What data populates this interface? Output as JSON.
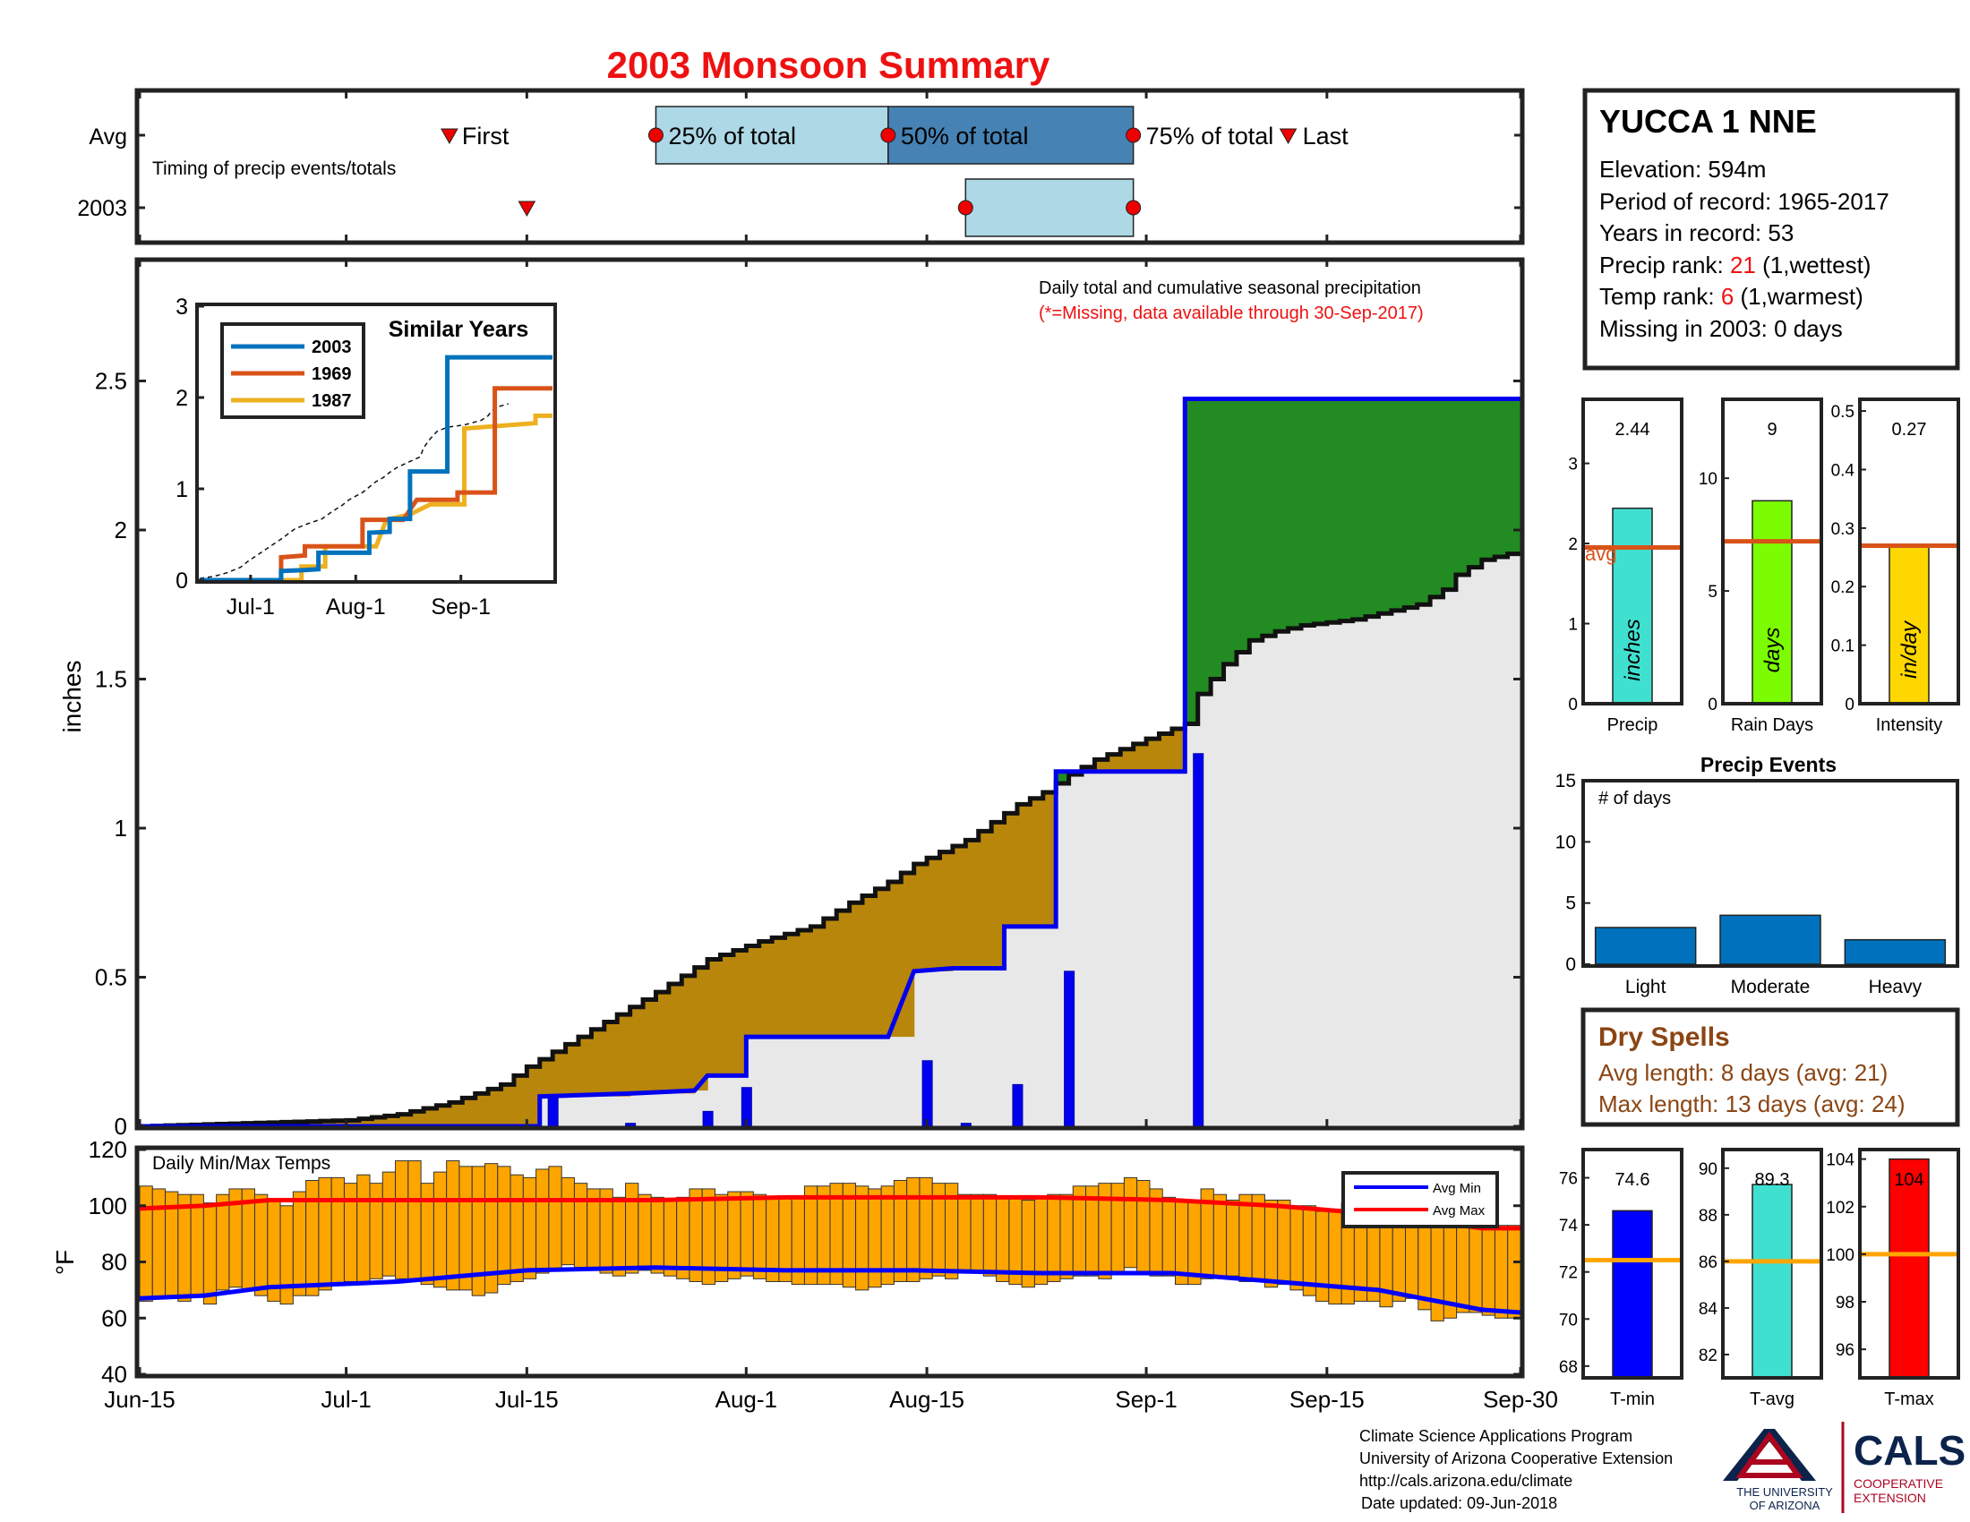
{
  "page": {
    "title": "2003 Monsoon Summary",
    "title_color": "#ee1111"
  },
  "timing": {
    "rows": [
      "Avg",
      "2003"
    ],
    "subtitle": "Timing of precip events/totals",
    "avg_labels": {
      "first": "First",
      "p25": "25% of total",
      "p50": "50% of total",
      "p75": "75% of total",
      "last": "Last"
    },
    "avg_days": {
      "first": 24,
      "p25": 40,
      "p50": 58,
      "p75": 77,
      "last": 89
    },
    "year_days": {
      "first": 30,
      "p50": 64,
      "p75": 77
    },
    "colors": {
      "light": "#add8e6",
      "dark": "#4682b4",
      "marker": "#ee0000"
    }
  },
  "station": {
    "name": "YUCCA 1 NNE",
    "elevation": "Elevation: 594m",
    "period": "Period of record: 1965-2017",
    "years": "Years in record: 53",
    "precip_rank_prefix": "Precip rank: ",
    "precip_rank": "21",
    "precip_rank_suffix": " (1,wettest)",
    "temp_rank_prefix": "Temp rank: ",
    "temp_rank": "6",
    "temp_rank_suffix": " (1,warmest)",
    "missing": "Missing in 2003: 0 days"
  },
  "precip_chart": {
    "note": "Daily total and cumulative seasonal precipitation",
    "missing_note": "(*=Missing, data available through 30-Sep-2017)",
    "ylabel": "inches",
    "yticks": [
      "0",
      "0.5",
      "1",
      "1.5",
      "2",
      "2.5"
    ]
  },
  "inset": {
    "title": "Similar Years",
    "xticks": [
      "Jul-1",
      "Aug-1",
      "Sep-1"
    ],
    "yticks": [
      "0",
      "1",
      "2",
      "3"
    ]
  },
  "temp_chart": {
    "label": "Daily Min/Max Temps",
    "ylabel": "°F",
    "yticks": [
      "40",
      "60",
      "80",
      "100",
      "120"
    ],
    "legend_min": "Avg Min",
    "legend_max": "Avg Max"
  },
  "xaxis": {
    "ticks": [
      "Jun-15",
      "Jul-1",
      "Jul-15",
      "Aug-1",
      "Aug-15",
      "Sep-1",
      "Sep-15",
      "Sep-30"
    ]
  },
  "stats": {
    "precip": {
      "label": "Precip",
      "value_text": "2.44",
      "unit": "inches",
      "value": 2.44,
      "avg": 1.95,
      "avg_label": "avg",
      "ylim": [
        0,
        3.8
      ],
      "yticks": [
        "0",
        "1",
        "2",
        "3"
      ],
      "color": "#40e0d0"
    },
    "raindays": {
      "label": "Rain Days",
      "value_text": "9",
      "unit": "days",
      "value": 9,
      "avg": 7.2,
      "ylim": [
        0,
        13.5
      ],
      "yticks": [
        "0",
        "5",
        "10"
      ],
      "color": "#7cfc00"
    },
    "intensity": {
      "label": "Intensity",
      "value_text": "0.27",
      "unit": "in/day",
      "value": 0.27,
      "avg": 0.27,
      "ylim": [
        0,
        0.52
      ],
      "yticks": [
        "0",
        "0.1",
        "0.2",
        "0.3",
        "0.4",
        "0.5"
      ],
      "color": "#ffd700"
    }
  },
  "events": {
    "title": "Precip Events",
    "subtitle": "# of days",
    "categories": [
      "Light",
      "Moderate",
      "Heavy"
    ],
    "values": [
      3,
      4,
      2
    ],
    "yticks": [
      "0",
      "5",
      "10",
      "15"
    ],
    "color": "#0072bd"
  },
  "dry_spells": {
    "title": "Dry Spells",
    "avg_length": "Avg length: 8 days (avg: 21)",
    "max_length": "Max length: 13 days (avg: 24)",
    "color": "#8b4513"
  },
  "temps_stats": {
    "tmin": {
      "label": "T-min",
      "value_text": "74.6",
      "value": 74.6,
      "avg": 72.5,
      "ylim": [
        67.5,
        77.2
      ],
      "yticks": [
        "68",
        "70",
        "72",
        "74",
        "76"
      ],
      "color": "#0000ff"
    },
    "tavg": {
      "label": "T-avg",
      "value_text": "89.3",
      "value": 89.3,
      "avg": 86.0,
      "ylim": [
        81,
        90.8
      ],
      "yticks": [
        "82",
        "84",
        "86",
        "88",
        "90"
      ],
      "color": "#40e0d0"
    },
    "tmax": {
      "label": "T-max",
      "value_text": "104",
      "value": 104,
      "avg": 100,
      "ylim": [
        94.8,
        104.4
      ],
      "yticks": [
        "96",
        "98",
        "100",
        "102",
        "104"
      ],
      "color": "#ff0000"
    },
    "avg_line_color": "#ffa500"
  },
  "footer": {
    "line1": "Climate Science Applications Program",
    "line2": "University of Arizona Cooperative Extension",
    "line3": "http://cals.arizona.edu/climate",
    "line4": "Date updated: 09-Jun-2018",
    "ua_line1": "THE UNIVERSITY",
    "ua_line2": "OF ARIZONA",
    "cals": "CALS",
    "coop1": "COOPERATIVE",
    "coop2": "EXTENSION"
  },
  "chart_data": [
    {
      "type": "area",
      "title": "Daily total and cumulative seasonal precipitation",
      "ylabel": "inches",
      "ylim": [
        0,
        2.9
      ],
      "xlim_days": [
        0,
        107
      ],
      "x_ticks": [
        "Jun-15",
        "Jul-1",
        "Jul-15",
        "Aug-1",
        "Aug-15",
        "Sep-1",
        "Sep-15",
        "Sep-30"
      ],
      "avg_cumulative": [
        [
          0,
          0
        ],
        [
          8,
          0.01
        ],
        [
          16,
          0.02
        ],
        [
          20,
          0.04
        ],
        [
          24,
          0.08
        ],
        [
          28,
          0.14
        ],
        [
          30,
          0.2
        ],
        [
          34,
          0.3
        ],
        [
          36,
          0.35
        ],
        [
          40,
          0.45
        ],
        [
          44,
          0.56
        ],
        [
          48,
          0.62
        ],
        [
          52,
          0.67
        ],
        [
          55,
          0.75
        ],
        [
          58,
          0.82
        ],
        [
          60,
          0.88
        ],
        [
          64,
          0.96
        ],
        [
          68,
          1.08
        ],
        [
          70,
          1.12
        ],
        [
          72,
          1.18
        ],
        [
          74,
          1.23
        ],
        [
          78,
          1.3
        ],
        [
          81,
          1.35
        ],
        [
          82,
          1.45
        ],
        [
          84,
          1.55
        ],
        [
          86,
          1.63
        ],
        [
          88,
          1.66
        ],
        [
          90,
          1.68
        ],
        [
          92,
          1.69
        ],
        [
          94,
          1.7
        ],
        [
          96,
          1.72
        ],
        [
          99,
          1.75
        ],
        [
          101,
          1.8
        ],
        [
          102,
          1.85
        ],
        [
          104,
          1.9
        ],
        [
          107,
          1.93
        ]
      ],
      "series": [
        {
          "name": "2003",
          "cumulative": [
            [
              0,
              0
            ],
            [
              31,
              0
            ],
            [
              31,
              0.1
            ],
            [
              38,
              0.11
            ],
            [
              43,
              0.12
            ],
            [
              44,
              0.17
            ],
            [
              47,
              0.17
            ],
            [
              47,
              0.3
            ],
            [
              58,
              0.3
            ],
            [
              60,
              0.52
            ],
            [
              63,
              0.53
            ],
            [
              67,
              0.53
            ],
            [
              67,
              0.67
            ],
            [
              71,
              0.67
            ],
            [
              71,
              1.19
            ],
            [
              81,
              1.19
            ],
            [
              81,
              2.44
            ],
            [
              107,
              2.44
            ]
          ]
        },
        {
          "name": "daily",
          "values": [
            [
              32,
              0.1
            ],
            [
              38,
              0.01
            ],
            [
              44,
              0.05
            ],
            [
              47,
              0.13
            ],
            [
              61,
              0.22
            ],
            [
              64,
              0.01
            ],
            [
              68,
              0.14
            ],
            [
              72,
              0.52
            ],
            [
              82,
              1.25
            ]
          ]
        }
      ]
    },
    {
      "type": "line",
      "title": "Similar Years",
      "x_ticks": [
        "Jul-1",
        "Aug-1",
        "Sep-1"
      ],
      "ylim": [
        0,
        3
      ],
      "series": [
        {
          "name": "2003",
          "color": "#0072bd",
          "points": [
            [
              0,
              0
            ],
            [
              24,
              0
            ],
            [
              24,
              0.1
            ],
            [
              31,
              0.11
            ],
            [
              35,
              0.12
            ],
            [
              35,
              0.3
            ],
            [
              50,
              0.3
            ],
            [
              50,
              0.52
            ],
            [
              56,
              0.53
            ],
            [
              56,
              0.67
            ],
            [
              62,
              0.67
            ],
            [
              62,
              1.19
            ],
            [
              73,
              1.19
            ],
            [
              73,
              2.44
            ],
            [
              104,
              2.44
            ]
          ]
        },
        {
          "name": "1969",
          "color": "#d95319",
          "points": [
            [
              0,
              0
            ],
            [
              24,
              0
            ],
            [
              24,
              0.25
            ],
            [
              31,
              0.27
            ],
            [
              31,
              0.37
            ],
            [
              48,
              0.37
            ],
            [
              48,
              0.66
            ],
            [
              60,
              0.66
            ],
            [
              64,
              0.88
            ],
            [
              76,
              0.88
            ],
            [
              76,
              0.96
            ],
            [
              87,
              0.96
            ],
            [
              87,
              2.1
            ],
            [
              104,
              2.1
            ]
          ]
        },
        {
          "name": "1987",
          "color": "#edb120",
          "points": [
            [
              0,
              0
            ],
            [
              30,
              0
            ],
            [
              30,
              0.15
            ],
            [
              37,
              0.15
            ],
            [
              37,
              0.37
            ],
            [
              52,
              0.37
            ],
            [
              55,
              0.66
            ],
            [
              62,
              0.72
            ],
            [
              68,
              0.83
            ],
            [
              78,
              0.83
            ],
            [
              78,
              1.66
            ],
            [
              92,
              1.7
            ],
            [
              99,
              1.72
            ],
            [
              99,
              1.8
            ],
            [
              104,
              1.8
            ]
          ]
        }
      ]
    },
    {
      "type": "bar",
      "title": "Daily Min/Max Temps",
      "ylabel": "°F",
      "ylim": [
        40,
        120
      ],
      "tmin": [
        66,
        67,
        67,
        66,
        68,
        65,
        70,
        71,
        70,
        68,
        66,
        65,
        68,
        68,
        70,
        72,
        73,
        73,
        74,
        75,
        74,
        74,
        72,
        71,
        70,
        70,
        68,
        69,
        72,
        73,
        74,
        76,
        77,
        79,
        78,
        77,
        76,
        75,
        76,
        77,
        76,
        75,
        74,
        73,
        72,
        73,
        74,
        75,
        74,
        73,
        73,
        72,
        72,
        72,
        72,
        71,
        70,
        71,
        72,
        73,
        73,
        74,
        75,
        74,
        76,
        76,
        75,
        73,
        72,
        71,
        72,
        73,
        74,
        75,
        75,
        74,
        76,
        78,
        76,
        75,
        75,
        72,
        72,
        74,
        75,
        75,
        73,
        74,
        71,
        72,
        70,
        68,
        66,
        65,
        65,
        66,
        66,
        64,
        66,
        67,
        63,
        59,
        60,
        62,
        62,
        61,
        60,
        60
      ],
      "tmax": [
        107,
        106,
        105,
        104,
        104,
        101,
        104,
        106,
        106,
        104,
        102,
        100,
        105,
        109,
        110,
        110,
        108,
        111,
        108,
        112,
        116,
        116,
        108,
        112,
        116,
        114,
        114,
        115,
        114,
        111,
        110,
        113,
        114,
        110,
        108,
        106,
        106,
        103,
        108,
        104,
        103,
        102,
        103,
        106,
        106,
        104,
        105,
        105,
        104,
        103,
        103,
        103,
        107,
        107,
        108,
        108,
        107,
        106,
        107,
        109,
        110,
        110,
        108,
        108,
        104,
        104,
        104,
        103,
        103,
        102,
        103,
        104,
        104,
        107,
        107,
        108,
        108,
        110,
        109,
        106,
        103,
        102,
        102,
        106,
        104,
        102,
        104,
        104,
        102,
        102,
        100,
        100,
        98,
        98,
        101,
        101,
        100,
        98,
        96,
        98,
        97,
        96,
        96,
        95,
        95,
        93,
        93,
        93
      ],
      "series": [
        {
          "name": "Avg Min",
          "color": "#0000ff",
          "points": [
            [
              0,
              67
            ],
            [
              5,
              68
            ],
            [
              10,
              71
            ],
            [
              20,
              73
            ],
            [
              30,
              77
            ],
            [
              40,
              78
            ],
            [
              50,
              77
            ],
            [
              60,
              77
            ],
            [
              70,
              76
            ],
            [
              80,
              76
            ],
            [
              88,
              73
            ],
            [
              96,
              70
            ],
            [
              104,
              63
            ],
            [
              107,
              62
            ]
          ]
        },
        {
          "name": "Avg Max",
          "color": "#ff0000",
          "points": [
            [
              0,
              99
            ],
            [
              5,
              100
            ],
            [
              10,
              102
            ],
            [
              20,
              102
            ],
            [
              30,
              102
            ],
            [
              40,
              102
            ],
            [
              50,
              103
            ],
            [
              60,
              103
            ],
            [
              70,
              103
            ],
            [
              80,
              102
            ],
            [
              88,
              100
            ],
            [
              96,
              97
            ],
            [
              104,
              92
            ],
            [
              107,
              92
            ]
          ]
        }
      ]
    }
  ]
}
